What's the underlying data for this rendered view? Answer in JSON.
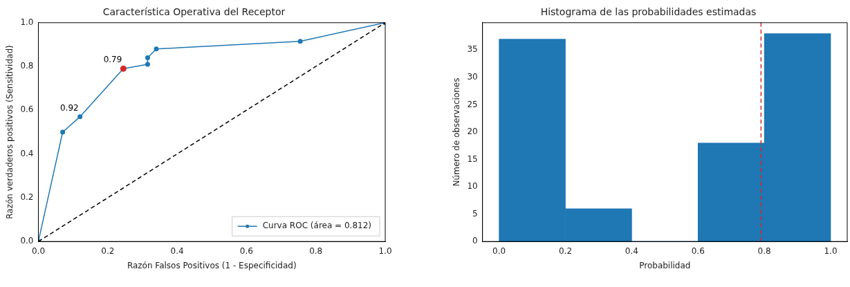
{
  "chart_data": [
    {
      "type": "line",
      "title": "Característica Operativa del Receptor",
      "xlabel": "Razón Falsos Positivos (1 - Especificidad)",
      "ylabel": "Razón verdaderos positivos (Sensitividad)",
      "xlim": [
        0,
        1
      ],
      "ylim": [
        0,
        1
      ],
      "xticks": [
        {
          "value": 0,
          "label": "0.0"
        },
        {
          "value": 0.2,
          "label": "0.2"
        },
        {
          "value": 0.4,
          "label": "0.4"
        },
        {
          "value": 0.6,
          "label": "0.6"
        },
        {
          "value": 0.8,
          "label": "0.8"
        },
        {
          "value": 1,
          "label": "1.0"
        }
      ],
      "yticks": [
        {
          "value": 0,
          "label": "0.0"
        },
        {
          "value": 0.2,
          "label": "0.2"
        },
        {
          "value": 0.4,
          "label": "0.4"
        },
        {
          "value": 0.6,
          "label": "0.6"
        },
        {
          "value": 0.8,
          "label": "0.8"
        },
        {
          "value": 1,
          "label": "1.0"
        }
      ],
      "legend": "bottom right",
      "grid": false,
      "series": [
        {
          "name": "Curva ROC (área = 0.812)",
          "type": "line",
          "color": "#1f77b4",
          "marker": "circle",
          "line_style": "solid",
          "x": [
            0,
            0.07,
            0.12,
            0.245,
            0.315,
            0.315,
            0.34,
            0.755,
            1
          ],
          "values": [
            0,
            0.5,
            0.57,
            0.79,
            0.81,
            0.84,
            0.88,
            0.915,
            1
          ]
        },
        {
          "type": "line",
          "color": "#000000",
          "marker": "none",
          "line_style": "dashed",
          "x": [
            0,
            1
          ],
          "values": [
            0,
            1
          ]
        },
        {
          "type": "scatter",
          "color": "#d62728",
          "marker": "circle",
          "x": [
            0.245
          ],
          "values": [
            0.79
          ]
        }
      ],
      "annotations": [
        {
          "text": "0.92",
          "x": 0.12,
          "y": 0.57
        },
        {
          "text": "0.79",
          "x": 0.245,
          "y": 0.79
        }
      ]
    },
    {
      "type": "histogram",
      "title": "Histograma de las probabilidades estimadas",
      "xlabel": "Probabilidad",
      "ylabel": "Número de observaciones",
      "bins": [
        0,
        0.2,
        0.4,
        0.6,
        0.8,
        1
      ],
      "values": [
        37,
        6,
        0,
        18,
        38
      ],
      "color": "#1f77b4",
      "xlim": [
        -0.05,
        1.05
      ],
      "ylim": [
        0,
        40
      ],
      "xticks": [
        {
          "value": 0,
          "label": "0.0"
        },
        {
          "value": 0.2,
          "label": "0.2"
        },
        {
          "value": 0.4,
          "label": "0.4"
        },
        {
          "value": 0.6,
          "label": "0.6"
        },
        {
          "value": 0.8,
          "label": "0.8"
        },
        {
          "value": 1,
          "label": "1.0"
        }
      ],
      "yticks": [
        0,
        5,
        10,
        15,
        20,
        25,
        30,
        35
      ],
      "grid": false,
      "legend": false,
      "ref_lines": [
        {
          "axis": "x",
          "value": 0.79,
          "color": "#d62728",
          "line_style": "dashed"
        }
      ]
    }
  ]
}
